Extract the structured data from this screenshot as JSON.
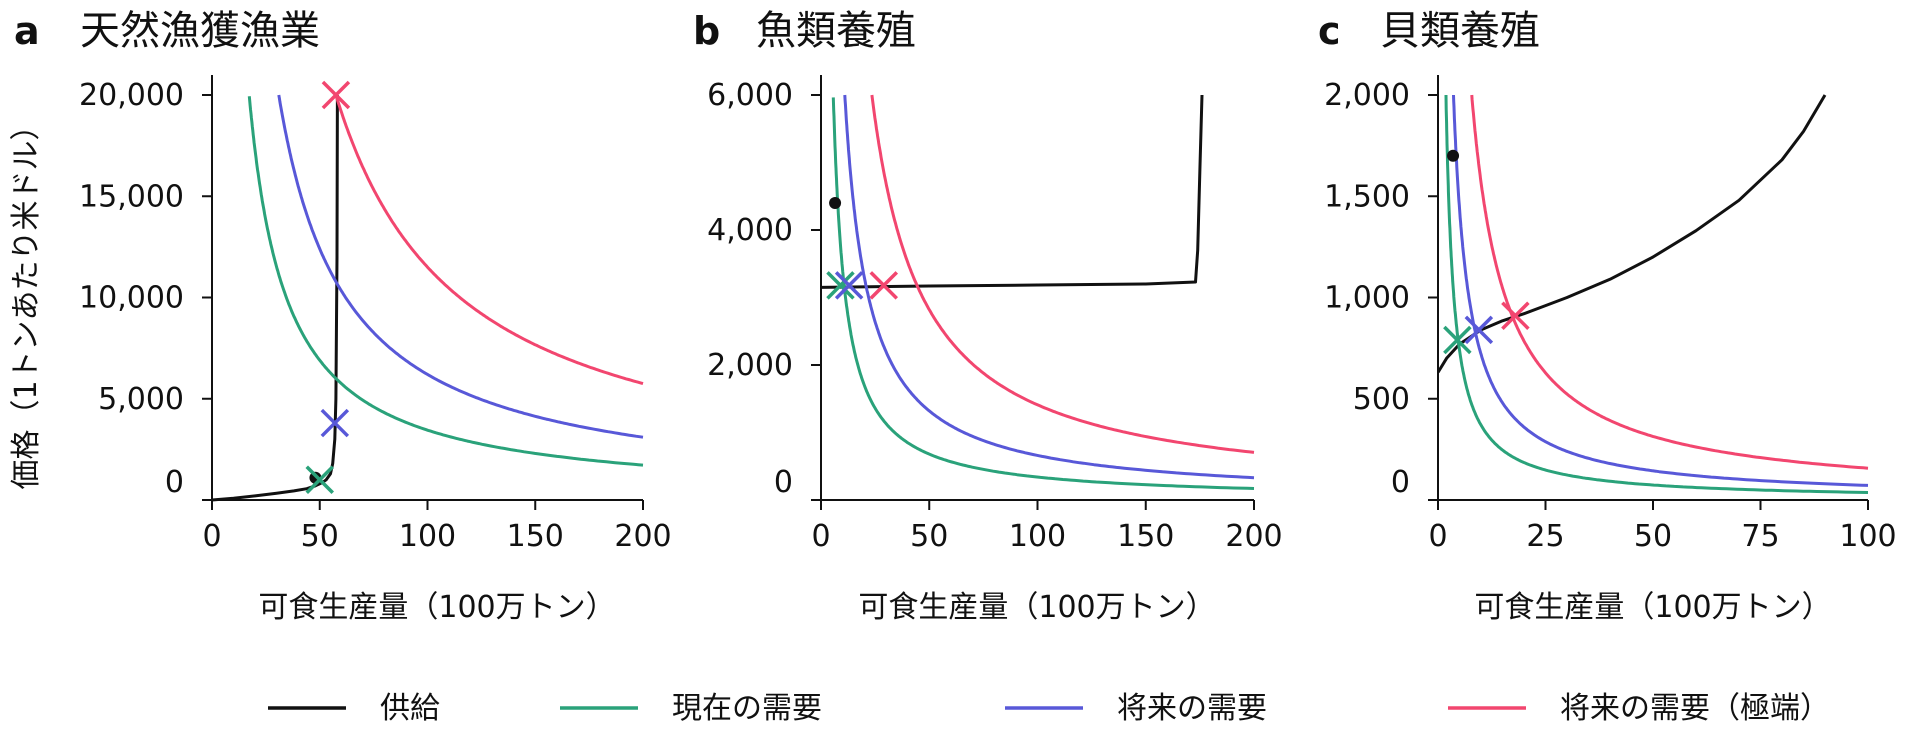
{
  "chart_data": [
    {
      "type": "line",
      "letter": "a",
      "title": "天然漁獲漁業",
      "xlabel": "可食生産量（100万トン）",
      "ylabel": "価格（1トンあたり米ドル）",
      "xlim": [
        0,
        200
      ],
      "ylim": [
        0,
        20000
      ],
      "xticks": [
        0,
        50,
        100,
        150,
        200
      ],
      "xtick_labels": [
        "0",
        "50",
        "100",
        "150",
        "200"
      ],
      "yticks": [
        0,
        5000,
        10000,
        15000,
        20000
      ],
      "ytick_labels": [
        "0",
        "5,000",
        "10,000",
        "15,000",
        "20,000"
      ],
      "grid": false,
      "series": [
        {
          "name": "供給",
          "color": "#111111",
          "x": [
            0,
            10,
            20,
            30,
            38,
            44,
            48,
            51,
            53,
            55,
            56,
            57,
            57.5,
            58,
            58.2
          ],
          "y": [
            0,
            90,
            200,
            330,
            450,
            560,
            700,
            850,
            1000,
            1300,
            1800,
            3000,
            5000,
            12000,
            20000
          ]
        },
        {
          "name": "現在の需要",
          "color": "#2aa27a",
          "k": 345000,
          "x_start": 17.3,
          "x_end": 200
        },
        {
          "name": "将来の需要",
          "color": "#5858d8",
          "k": 620000,
          "x_start": 31,
          "x_end": 200
        },
        {
          "name": "将来の需要（極端）",
          "color": "#f2466f",
          "k": 1150000,
          "x_start": 57.5,
          "x_end": 200
        }
      ],
      "equilibria": [
        {
          "series": "現在の需要",
          "x": 50,
          "y": 1000
        },
        {
          "series": "将来の需要",
          "x": 57,
          "y": 3800
        },
        {
          "series": "将来の需要（極端）",
          "x": 57.5,
          "y": 20000
        }
      ],
      "points": [
        {
          "x": 48,
          "y": 1100
        }
      ]
    },
    {
      "type": "line",
      "letter": "b",
      "title": "魚類養殖",
      "xlabel": "可食生産量（100万トン）",
      "ylabel": "",
      "xlim": [
        0,
        200
      ],
      "ylim": [
        0,
        6000
      ],
      "xticks": [
        0,
        50,
        100,
        150,
        200
      ],
      "xtick_labels": [
        "0",
        "50",
        "100",
        "150",
        "200"
      ],
      "yticks": [
        0,
        2000,
        4000,
        6000
      ],
      "ytick_labels": [
        "0",
        "2,000",
        "4,000",
        "6,000"
      ],
      "grid": false,
      "series": [
        {
          "name": "供給",
          "color": "#111111",
          "x": [
            0,
            50,
            100,
            150,
            173,
            174,
            175,
            176
          ],
          "y": [
            3150,
            3170,
            3185,
            3200,
            3230,
            3700,
            4900,
            6000
          ]
        },
        {
          "name": "現在の需要",
          "color": "#2aa27a",
          "k": 34000,
          "x_start": 5.7,
          "x_end": 200
        },
        {
          "name": "将来の需要",
          "color": "#5858d8",
          "k": 66000,
          "x_start": 11,
          "x_end": 200
        },
        {
          "name": "将来の需要（極端）",
          "color": "#f2466f",
          "k": 141000,
          "x_start": 23.5,
          "x_end": 200
        }
      ],
      "equilibria": [
        {
          "series": "現在の需要",
          "x": 9,
          "y": 3180
        },
        {
          "series": "将来の需要",
          "x": 13,
          "y": 3180
        },
        {
          "series": "将来の需要（極端）",
          "x": 29,
          "y": 3180
        }
      ],
      "points": [
        {
          "x": 6.5,
          "y": 4400
        }
      ]
    },
    {
      "type": "line",
      "letter": "c",
      "title": "貝類養殖",
      "xlabel": "可食生産量（100万トン）",
      "ylabel": "",
      "xlim": [
        0,
        100
      ],
      "ylim": [
        0,
        2000
      ],
      "xticks": [
        0,
        25,
        50,
        75,
        100
      ],
      "xtick_labels": [
        "0",
        "25",
        "50",
        "75",
        "100"
      ],
      "yticks": [
        0,
        500,
        1000,
        1500,
        2000
      ],
      "ytick_labels": [
        "0",
        "500",
        "1,000",
        "1,500",
        "2,000"
      ],
      "grid": false,
      "series": [
        {
          "name": "供給",
          "color": "#111111",
          "x": [
            0,
            2,
            5,
            10,
            15,
            20,
            25,
            30,
            40,
            50,
            60,
            70,
            80,
            85,
            90
          ],
          "y": [
            630,
            700,
            770,
            840,
            885,
            920,
            960,
            1000,
            1090,
            1200,
            1330,
            1480,
            1680,
            1820,
            2000
          ]
        },
        {
          "name": "現在の需要",
          "color": "#2aa27a",
          "k": 3700,
          "x_start": 1.85,
          "x_end": 100
        },
        {
          "name": "将来の需要",
          "color": "#5858d8",
          "k": 7200,
          "x_start": 3.6,
          "x_end": 100
        },
        {
          "name": "将来の需要（極端）",
          "color": "#f2466f",
          "k": 15700,
          "x_start": 7.85,
          "x_end": 100
        }
      ],
      "equilibria": [
        {
          "series": "現在の需要",
          "x": 4.5,
          "y": 790
        },
        {
          "series": "将来の需要",
          "x": 9.5,
          "y": 840
        },
        {
          "series": "将来の需要（極端）",
          "x": 18,
          "y": 910
        }
      ],
      "points": [
        {
          "x": 3.5,
          "y": 1700
        }
      ]
    }
  ],
  "legend": {
    "placement": "bottom",
    "items": [
      {
        "label": "供給",
        "color": "#111111"
      },
      {
        "label": "現在の需要",
        "color": "#2aa27a"
      },
      {
        "label": "将来の需要",
        "color": "#5858d8"
      },
      {
        "label": "将来の需要（極端）",
        "color": "#f2466f"
      }
    ]
  }
}
